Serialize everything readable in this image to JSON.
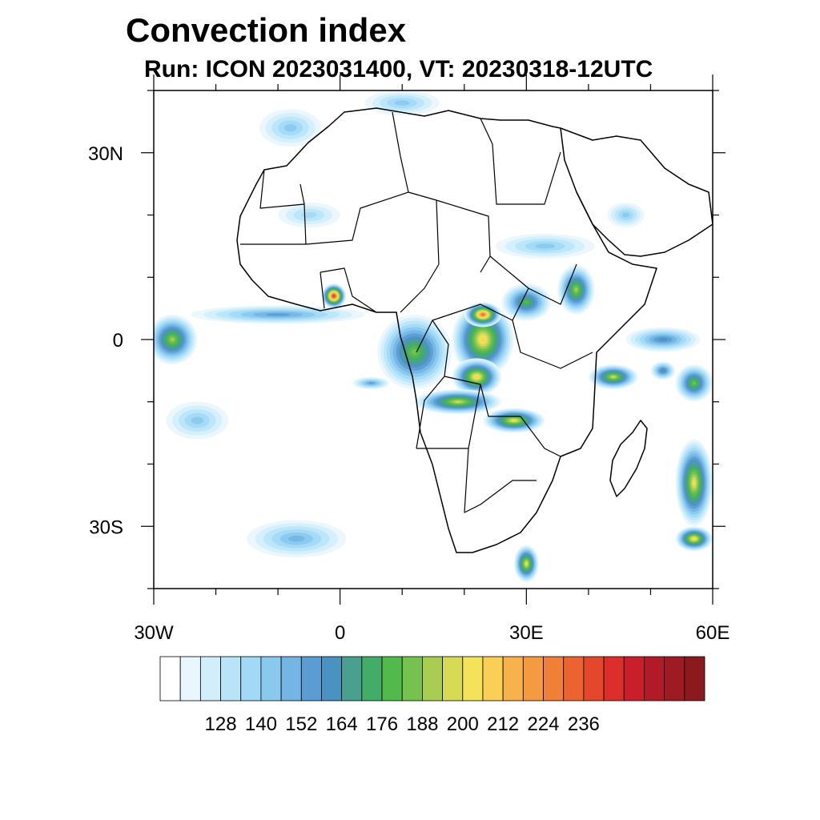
{
  "title": "Convection index",
  "subtitle": "Run: ICON 2023031400,  VT: 20230318-12UTC",
  "map": {
    "extent": {
      "lon": [
        -30,
        60
      ],
      "lat": [
        -40,
        40
      ]
    },
    "lat_ticks": [
      {
        "value": 30,
        "label": "30N"
      },
      {
        "value": 0,
        "label": "0"
      },
      {
        "value": -30,
        "label": "30S"
      }
    ],
    "lon_ticks": [
      {
        "value": -30,
        "label": "30W"
      },
      {
        "value": 0,
        "label": "0"
      },
      {
        "value": 30,
        "label": "30E"
      },
      {
        "value": 60,
        "label": "60E"
      }
    ],
    "minor_ticks_deg": 10
  },
  "colorbar": {
    "labels": [
      "128",
      "140",
      "152",
      "164",
      "176",
      "188",
      "200",
      "212",
      "224",
      "236"
    ],
    "label_every": 2,
    "colors": [
      "#ffffff",
      "#eaf6fd",
      "#d2eefb",
      "#b9e4f8",
      "#a2d9f6",
      "#8ac9ee",
      "#74b5e4",
      "#5a9dd4",
      "#4a93c1",
      "#4aa08e",
      "#43ac68",
      "#52ba4d",
      "#76c24e",
      "#a8cd52",
      "#d6da55",
      "#f2e35a",
      "#f9cf55",
      "#f8b24c",
      "#f49a40",
      "#f07f38",
      "#eb6331",
      "#e5472d",
      "#dc2f2c",
      "#c91f2b",
      "#b31a28",
      "#9f1b24",
      "#8b1a1f"
    ]
  },
  "convection_cells": [
    {
      "lon": 12,
      "lat": -2,
      "rx": 6,
      "ry": 6,
      "level": 12
    },
    {
      "lon": 23,
      "lat": 0,
      "rx": 5,
      "ry": 6,
      "level": 16
    },
    {
      "lon": 23,
      "lat": 4,
      "rx": 3,
      "ry": 2,
      "level": 20
    },
    {
      "lon": 22,
      "lat": -6,
      "rx": 4,
      "ry": 3,
      "level": 16
    },
    {
      "lon": 19,
      "lat": -10,
      "rx": 7,
      "ry": 2,
      "level": 14
    },
    {
      "lon": 28,
      "lat": -13,
      "rx": 5,
      "ry": 2,
      "level": 15
    },
    {
      "lon": 30,
      "lat": 6,
      "rx": 4,
      "ry": 3,
      "level": 11
    },
    {
      "lon": 38,
      "lat": 8,
      "rx": 3,
      "ry": 4,
      "level": 13
    },
    {
      "lon": -1,
      "lat": 7,
      "rx": 2,
      "ry": 2,
      "level": 22
    },
    {
      "lon": -10,
      "lat": 4,
      "rx": 14,
      "ry": 1.5,
      "level": 7
    },
    {
      "lon": -27,
      "lat": 0,
      "rx": 4,
      "ry": 4,
      "level": 13
    },
    {
      "lon": 44,
      "lat": -6,
      "rx": 4,
      "ry": 2,
      "level": 14
    },
    {
      "lon": 52,
      "lat": 0,
      "rx": 6,
      "ry": 2,
      "level": 8
    },
    {
      "lon": 57,
      "lat": -7,
      "rx": 3,
      "ry": 3,
      "level": 12
    },
    {
      "lon": 57,
      "lat": -23,
      "rx": 3,
      "ry": 7,
      "level": 15
    },
    {
      "lon": 57,
      "lat": -32,
      "rx": 3,
      "ry": 2,
      "level": 16
    },
    {
      "lon": 30,
      "lat": -36,
      "rx": 2,
      "ry": 3,
      "level": 15
    },
    {
      "lon": 5,
      "lat": -7,
      "rx": 3,
      "ry": 1,
      "level": 7
    },
    {
      "lon": 33,
      "lat": 15,
      "rx": 8,
      "ry": 2,
      "level": 5
    },
    {
      "lon": -5,
      "lat": 20,
      "rx": 5,
      "ry": 2,
      "level": 4
    },
    {
      "lon": -8,
      "lat": 34,
      "rx": 5,
      "ry": 3,
      "level": 5
    },
    {
      "lon": 10,
      "lat": 38,
      "rx": 6,
      "ry": 2,
      "level": 5
    },
    {
      "lon": -23,
      "lat": -13,
      "rx": 5,
      "ry": 3,
      "level": 5
    },
    {
      "lon": -7,
      "lat": -32,
      "rx": 8,
      "ry": 3,
      "level": 6
    },
    {
      "lon": 46,
      "lat": 20,
      "rx": 3,
      "ry": 2,
      "level": 5
    },
    {
      "lon": 52,
      "lat": -5,
      "rx": 2,
      "ry": 1.5,
      "level": 9
    }
  ]
}
